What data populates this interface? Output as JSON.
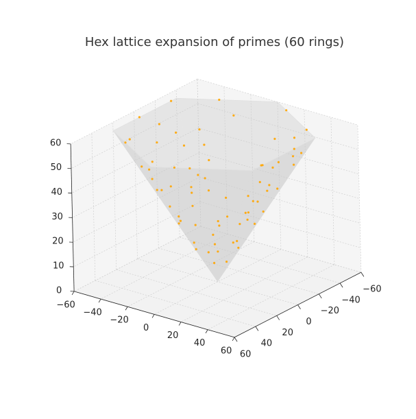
{
  "chart_data": {
    "type": "scatter3d",
    "title": "Hex lattice expansion of primes (60 rings)",
    "color": "#ffa500",
    "surface_color": "#c8c8c8",
    "pane_color": "#f2f2f2",
    "grid": true,
    "xlim": [
      -60,
      60
    ],
    "ylim": [
      -60,
      60
    ],
    "zlim": [
      0,
      60
    ],
    "xticks": [
      {
        "value": -60,
        "label": "−60"
      },
      {
        "value": -40,
        "label": "−40"
      },
      {
        "value": -20,
        "label": "−20"
      },
      0,
      20,
      40,
      60
    ],
    "yticks": [
      {
        "value": -60,
        "label": "−60"
      },
      {
        "value": -40,
        "label": "−40"
      },
      {
        "value": -20,
        "label": "−20"
      },
      0,
      20,
      40,
      60
    ],
    "zticks": [
      0,
      10,
      20,
      30,
      40,
      50,
      60
    ],
    "x": [
      8.7,
      -8.7,
      4,
      -5,
      13,
      -6,
      6,
      -13,
      17.3,
      10,
      -10,
      -17.3,
      3,
      21.7,
      -21.7,
      12,
      -15,
      8,
      26,
      26,
      -26,
      18,
      -5,
      14,
      -20,
      30.3,
      -30.3,
      25,
      -12,
      20,
      -28,
      34.6,
      34.6,
      -34.6,
      -34.6,
      10,
      -22,
      5,
      -25,
      39,
      39,
      -39,
      30,
      -8,
      22,
      -30,
      -39,
      43.3,
      43.3,
      -43.3,
      -43.3,
      15,
      -28,
      10,
      -35,
      35,
      47.6,
      47.6,
      -47.6,
      -47.6,
      25,
      -10,
      30,
      -20,
      52,
      52,
      -52,
      -52,
      20,
      -35,
      12,
      -30,
      40
    ],
    "y": [
      2,
      -3,
      7.7,
      -7.1,
      -4,
      12,
      -11.5,
      5,
      6,
      14.2,
      -14.2,
      -2,
      -18.3,
      -9,
      8,
      18.1,
      16.3,
      -20.4,
      3,
      -12,
      -10,
      19.6,
      27.1,
      -21.9,
      -18.5,
      10,
      4,
      20.6,
      28.1,
      -23.5,
      -18.8,
      -15,
      8,
      -5,
      16,
      34.2,
      27.3,
      -37.1,
      -25.6,
      -2,
      18,
      -20,
      27.7,
      40.4,
      -32.3,
      -27.7,
      10,
      -20,
      12,
      0,
      -18,
      41.3,
      33.8,
      -44.2,
      -29.8,
      -29.8,
      5,
      -22,
      20,
      -8,
      40.6,
      49.2,
      -37.7,
      -43.5,
      -10,
      20,
      -25,
      5,
      48.5,
      39.8,
      -53.1,
      -42.7,
      -36.9
    ],
    "z": [
      10,
      10,
      10,
      10,
      15,
      15,
      15,
      15,
      20,
      20,
      20,
      20,
      20,
      25,
      25,
      25,
      25,
      25,
      30,
      30,
      30,
      30,
      30,
      30,
      30,
      35,
      35,
      35,
      35,
      35,
      35,
      40,
      40,
      40,
      40,
      40,
      40,
      40,
      40,
      45,
      45,
      45,
      45,
      45,
      45,
      45,
      45,
      50,
      50,
      50,
      50,
      50,
      50,
      50,
      50,
      50,
      55,
      55,
      55,
      55,
      55,
      55,
      55,
      55,
      60,
      60,
      60,
      60,
      60,
      60,
      60,
      60,
      60
    ]
  }
}
